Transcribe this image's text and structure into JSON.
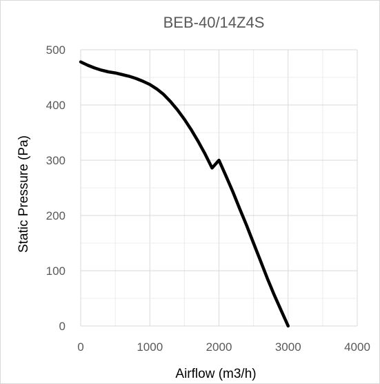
{
  "chart_data": {
    "type": "line",
    "title": "BEB-40/14Z4S",
    "xlabel": "Airflow (m3/h)",
    "ylabel": "Static Pressure (Pa)",
    "xlim": [
      0,
      4000
    ],
    "ylim": [
      0,
      500
    ],
    "x_ticks": [
      "0",
      "1000",
      "2000",
      "3000",
      "4000"
    ],
    "y_ticks": [
      "0",
      "100",
      "200",
      "300",
      "400",
      "500"
    ],
    "grid": true,
    "legend": "none",
    "series": [
      {
        "color": "#000000",
        "x": [
          0,
          100,
          200,
          300,
          400,
          500,
          600,
          700,
          800,
          900,
          1000,
          1100,
          1200,
          1300,
          1400,
          1500,
          1600,
          1700,
          1800,
          1900,
          2000,
          2100,
          2200,
          2300,
          2400,
          2500,
          2600,
          2700,
          2800,
          2900,
          3000,
          3100,
          3180
        ],
        "y": [
          478,
          472,
          467,
          463,
          460,
          458,
          455,
          452,
          448,
          443,
          437,
          429,
          419,
          406,
          391,
          374,
          355,
          334,
          311,
          286,
          300,
          272,
          243,
          212,
          182,
          150,
          118,
          86,
          56,
          28,
          0,
          0,
          0
        ]
      }
    ]
  }
}
